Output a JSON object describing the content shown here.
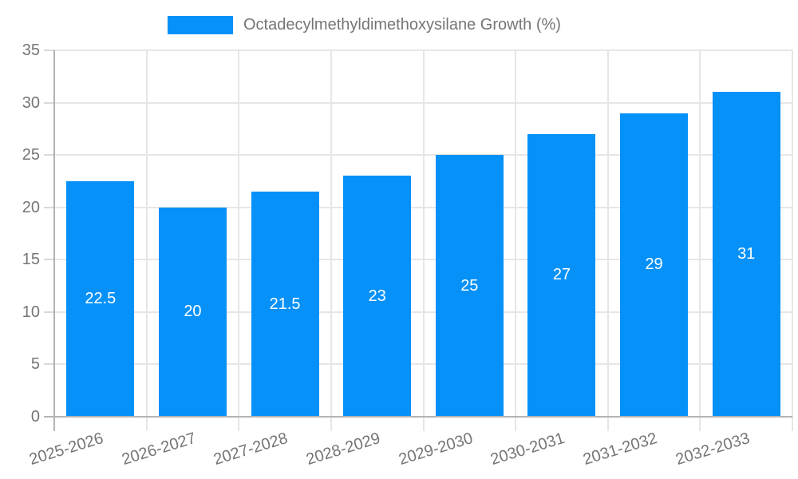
{
  "legend": {
    "label": "Octadecylmethyldimethoxysilane Growth (%)"
  },
  "colors": {
    "bar": "#0691f8",
    "grid": "#e6e6e6",
    "tick": "#d9d9d9",
    "axis": "#b3b3b3",
    "text": "#757575",
    "bar_label": "#ffffff",
    "background": "#ffffff"
  },
  "chart_data": {
    "type": "bar",
    "title": "Octadecylmethyldimethoxysilane Growth (%)",
    "series_name": "Octadecylmethyldimethoxysilane Growth (%)",
    "categories": [
      "2025-2026",
      "2026-2027",
      "2027-2028",
      "2028-2029",
      "2029-2030",
      "2030-2031",
      "2031-2032",
      "2032-2033"
    ],
    "values": [
      22.5,
      20,
      21.5,
      23,
      25,
      27,
      29,
      31
    ],
    "bar_labels": [
      "22.5",
      "20",
      "21.5",
      "23",
      "25",
      "27",
      "29",
      "31"
    ],
    "xlabel": "",
    "ylabel": "",
    "ylim": [
      0,
      35
    ],
    "yticks": [
      0,
      5,
      10,
      15,
      20,
      25,
      30,
      35
    ],
    "grid": true,
    "legend_position": "top",
    "x_label_rotation_deg": -17
  }
}
